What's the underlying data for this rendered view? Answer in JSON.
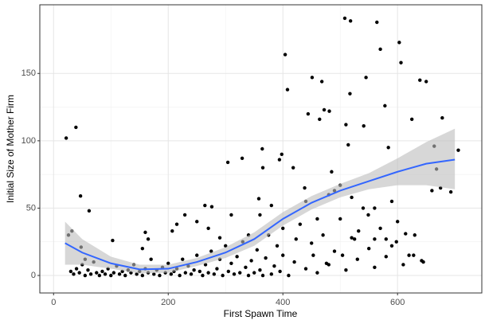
{
  "chart_data": {
    "type": "scatter",
    "xlabel": "First Spawn Time",
    "ylabel": "Initial Size of Mother Firm",
    "xlim": [
      -24,
      747
    ],
    "ylim": [
      -13,
      201
    ],
    "xticks": [
      0,
      200,
      400,
      600
    ],
    "yticks": [
      0,
      50,
      100,
      150
    ],
    "grid": true,
    "color": "#000000",
    "x": [
      22,
      39,
      47,
      62,
      32,
      26,
      103,
      207,
      215,
      229,
      264,
      276,
      304,
      329,
      364,
      365,
      358,
      404,
      408,
      398,
      394,
      444,
      451,
      464,
      468,
      472,
      481,
      508,
      518,
      517,
      510,
      514,
      545,
      541,
      564,
      570,
      578,
      603,
      606,
      584,
      625,
      639,
      650,
      678,
      664,
      706,
      668,
      660,
      675,
      693,
      614,
      598,
      628,
      642,
      532,
      549,
      560,
      580,
      485,
      490,
      500,
      438,
      418,
      423,
      453,
      476,
      504,
      525,
      30,
      35,
      40,
      45,
      50,
      55,
      60,
      65,
      70,
      75,
      80,
      85,
      90,
      95,
      100,
      105,
      110,
      115,
      120,
      125,
      130,
      135,
      140,
      145,
      150,
      155,
      160,
      165,
      170,
      175,
      180,
      185,
      190,
      195,
      200,
      205,
      210,
      215,
      220,
      225,
      230,
      235,
      240,
      245,
      250,
      255,
      260,
      265,
      270,
      275,
      280,
      285,
      290,
      295,
      300,
      305,
      310,
      315,
      320,
      325,
      330,
      335,
      340,
      345,
      350,
      355,
      360,
      365,
      370,
      375,
      380,
      385,
      390,
      395,
      400,
      410,
      420,
      430,
      440,
      450,
      460,
      470,
      480,
      490,
      500,
      510,
      520,
      530,
      540,
      550,
      560,
      570,
      580,
      590,
      600,
      610,
      620,
      630,
      645,
      48,
      55,
      155,
      160,
      165,
      250,
      270,
      290,
      310,
      340,
      360,
      380,
      400,
      440,
      460,
      480,
      520,
      560,
      590
    ],
    "values": [
      102,
      110,
      59,
      48,
      33,
      30,
      26,
      33,
      38,
      45,
      52,
      51,
      84,
      87,
      94,
      80,
      57,
      164,
      138,
      90,
      86,
      120,
      147,
      116,
      144,
      123,
      122,
      191,
      189,
      135,
      112,
      97,
      147,
      111,
      188,
      168,
      126,
      173,
      158,
      95,
      116,
      145,
      144,
      117,
      96,
      93,
      79,
      63,
      65,
      62,
      31,
      25,
      15,
      11,
      33,
      45,
      27,
      27,
      77,
      63,
      67,
      65,
      80,
      27,
      15,
      9,
      15,
      27,
      3,
      1,
      5,
      2,
      8,
      0,
      4,
      1,
      10,
      2,
      0,
      3,
      1,
      5,
      0,
      2,
      7,
      1,
      3,
      0,
      4,
      2,
      8,
      1,
      3,
      0,
      5,
      2,
      12,
      1,
      4,
      0,
      6,
      2,
      9,
      1,
      3,
      5,
      0,
      12,
      2,
      7,
      1,
      4,
      15,
      3,
      0,
      8,
      2,
      18,
      1,
      5,
      12,
      0,
      22,
      3,
      9,
      1,
      14,
      2,
      25,
      6,
      0,
      11,
      2,
      19,
      4,
      0,
      13,
      30,
      1,
      7,
      22,
      3,
      15,
      0,
      10,
      38,
      5,
      24,
      2,
      30,
      8,
      18,
      42,
      4,
      28,
      12,
      50,
      20,
      6,
      35,
      14,
      22,
      40,
      8,
      15,
      30,
      10,
      21,
      12,
      20,
      32,
      27,
      40,
      35,
      28,
      45,
      30,
      45,
      52,
      35,
      55,
      42,
      60,
      58,
      50,
      55
    ],
    "smooth": {
      "color": "#3366ff",
      "band_color": "#bdbdbd",
      "x": [
        20,
        50,
        100,
        150,
        200,
        250,
        300,
        350,
        400,
        450,
        500,
        550,
        600,
        650,
        700
      ],
      "values": [
        24,
        17,
        9,
        4.5,
        5,
        10,
        17,
        27,
        42,
        54,
        63,
        70,
        77,
        83,
        86
      ],
      "lower": [
        8,
        8,
        5,
        1.5,
        2,
        7,
        13,
        22,
        37,
        49,
        58,
        64,
        67,
        67,
        64
      ],
      "upper": [
        40,
        27,
        14,
        8,
        8,
        13,
        21,
        32,
        47,
        59,
        68,
        76,
        87,
        99,
        109
      ]
    }
  }
}
